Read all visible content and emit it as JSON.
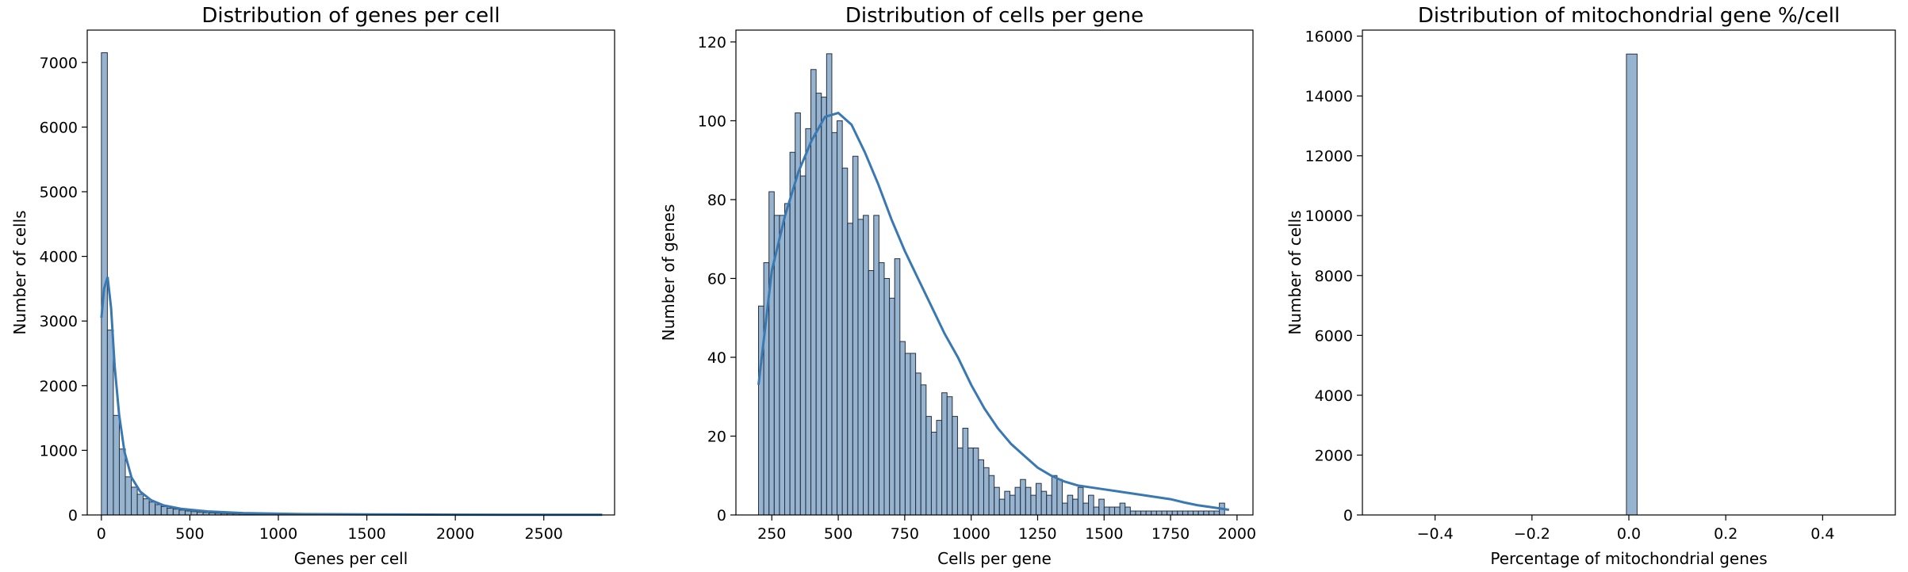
{
  "chart_data": [
    {
      "type": "bar",
      "title": "Distribution of genes per cell",
      "xlabel": "Genes per cell",
      "ylabel": "Number of cells",
      "xlim": [
        -80,
        2900
      ],
      "ylim": [
        0,
        7500
      ],
      "xticks": [
        0,
        500,
        1000,
        1500,
        2000,
        2500
      ],
      "yticks": [
        0,
        1000,
        2000,
        3000,
        4000,
        5000,
        6000,
        7000
      ],
      "bin_start": 0,
      "bin_width": 33.8,
      "values": [
        7150,
        2860,
        1540,
        1020,
        590,
        430,
        320,
        250,
        200,
        160,
        130,
        105,
        90,
        75,
        62,
        52,
        45,
        38,
        32,
        27,
        23,
        20,
        17,
        15,
        13,
        11,
        10,
        9,
        8,
        7,
        6,
        6,
        5,
        5,
        4,
        4,
        4,
        3,
        3,
        3,
        3,
        3,
        2,
        2,
        2,
        2,
        2,
        2,
        2,
        2,
        2,
        2,
        1,
        1,
        1,
        1,
        1,
        1,
        1,
        1,
        1,
        1,
        1,
        1,
        1,
        1,
        1,
        1,
        1,
        1,
        1,
        1,
        1,
        1,
        1,
        1,
        1,
        1,
        1,
        1,
        1,
        1,
        1,
        1
      ],
      "kde_x": [
        0,
        15,
        35,
        55,
        75,
        100,
        130,
        170,
        220,
        280,
        350,
        450,
        600,
        800,
        1100,
        1500,
        2000,
        2500,
        2830
      ],
      "kde_y": [
        3050,
        3500,
        3680,
        3200,
        2300,
        1550,
        980,
        580,
        360,
        230,
        150,
        95,
        55,
        30,
        15,
        8,
        5,
        3,
        2
      ],
      "color": "#6e97bd",
      "kde_color": "#3a78b1"
    },
    {
      "type": "bar",
      "title": "Distribution of cells per gene",
      "xlabel": "Cells per gene",
      "ylabel": "Number of genes",
      "xlim": [
        115,
        2060
      ],
      "ylim": [
        0,
        123
      ],
      "xticks": [
        250,
        500,
        750,
        1000,
        1250,
        1500,
        1750,
        2000
      ],
      "yticks": [
        0,
        20,
        40,
        60,
        80,
        100,
        120
      ],
      "bin_start": 200,
      "bin_width": 19.7,
      "values": [
        53,
        64,
        82,
        76,
        76,
        79,
        92,
        102,
        86,
        98,
        113,
        107,
        106,
        117,
        97,
        100,
        88,
        74,
        91,
        75,
        76,
        62,
        76,
        64,
        60,
        55,
        65,
        44,
        41,
        41,
        36,
        33,
        25,
        21,
        24,
        31,
        30,
        25,
        17,
        22,
        17,
        17,
        14,
        12,
        10,
        7,
        4,
        6,
        5,
        7,
        9,
        7,
        5,
        8,
        6,
        5,
        10,
        9,
        3,
        5,
        4,
        7,
        3,
        5,
        2,
        4,
        2,
        2,
        2,
        3,
        2,
        1,
        1,
        1,
        1,
        1,
        1,
        1,
        1,
        1,
        1,
        1,
        1,
        1,
        1,
        1,
        1,
        1,
        3
      ],
      "kde_x": [
        200,
        250,
        300,
        350,
        400,
        450,
        500,
        550,
        600,
        650,
        700,
        750,
        800,
        850,
        900,
        950,
        1000,
        1050,
        1100,
        1150,
        1200,
        1250,
        1300,
        1350,
        1400,
        1450,
        1500,
        1550,
        1600,
        1650,
        1700,
        1750,
        1800,
        1850,
        1900,
        1950,
        1970
      ],
      "kde_y": [
        33,
        62,
        76,
        87,
        95,
        101,
        102,
        99,
        92,
        84,
        75,
        67,
        60,
        53,
        46,
        40,
        33,
        27,
        22,
        18,
        15,
        12,
        10,
        8.5,
        7.5,
        7,
        6.5,
        6,
        5.5,
        5,
        4.5,
        4,
        3.2,
        2.5,
        2,
        1.5,
        1.3
      ],
      "color": "#6e97bd",
      "kde_color": "#3a78b1"
    },
    {
      "type": "bar",
      "title": "Distribution of mitochondrial gene %/cell",
      "xlabel": "Percentage of mitochondrial genes",
      "ylabel": "Number of cells",
      "xlim": [
        -0.55,
        0.55
      ],
      "ylim": [
        0,
        16200
      ],
      "xticks": [
        -0.4,
        -0.2,
        0.0,
        0.2,
        0.4
      ],
      "xtick_labels": [
        "−0.4",
        "−0.2",
        "0.0",
        "0.2",
        "0.4"
      ],
      "yticks": [
        0,
        2000,
        4000,
        6000,
        8000,
        10000,
        12000,
        14000,
        16000
      ],
      "bins": [
        {
          "x0": -0.005,
          "x1": 0.017,
          "value": 15400
        }
      ],
      "color": "#6e97bd"
    }
  ]
}
